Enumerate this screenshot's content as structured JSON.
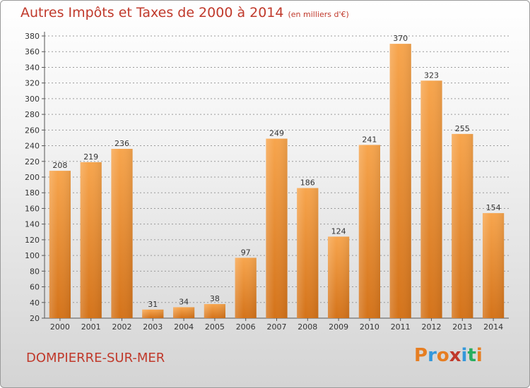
{
  "header": {
    "title": "Autres Impôts et Taxes de 2000 à 2014",
    "unit": "(en milliers d'€)"
  },
  "footer": {
    "commune": "DOMPIERRE-SUR-MER",
    "logo_text": "Proxiti"
  },
  "colors": {
    "title": "#c0392b",
    "bar_light": "#f7a54d",
    "bar_dark": "#d4731a",
    "grid": "#9a9a9a",
    "logo_letters": [
      "#e67e22",
      "#3498db",
      "#e67e22",
      "#c0392b",
      "#3498db",
      "#27ae60",
      "#e67e22"
    ]
  },
  "chart_data": {
    "type": "bar",
    "title": "Autres Impôts et Taxes de 2000 à 2014",
    "subtitle": "(en milliers d'€)",
    "categories": [
      "2000",
      "2001",
      "2002",
      "2003",
      "2004",
      "2005",
      "2006",
      "2007",
      "2008",
      "2009",
      "2010",
      "2011",
      "2012",
      "2013",
      "2014"
    ],
    "values": [
      208,
      219,
      236,
      31,
      34,
      38,
      97,
      249,
      186,
      124,
      241,
      370,
      323,
      255,
      154
    ],
    "ylim": [
      20,
      380
    ],
    "ytick_step": 20,
    "grid": "horizontal-dashed",
    "xlabel": "",
    "ylabel": ""
  }
}
